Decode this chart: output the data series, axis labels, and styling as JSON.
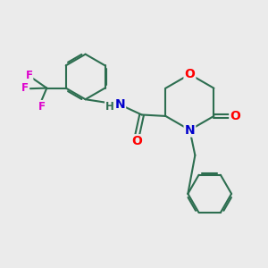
{
  "bg_color": "#ebebeb",
  "bond_color": "#2d6e50",
  "bond_width": 1.5,
  "atom_colors": {
    "O": "#ff0000",
    "N": "#0000cc",
    "H": "#2d6e50",
    "F": "#dd00cc",
    "C": "#2d6e50"
  },
  "font_size_atoms": 10,
  "font_size_small": 8.5
}
